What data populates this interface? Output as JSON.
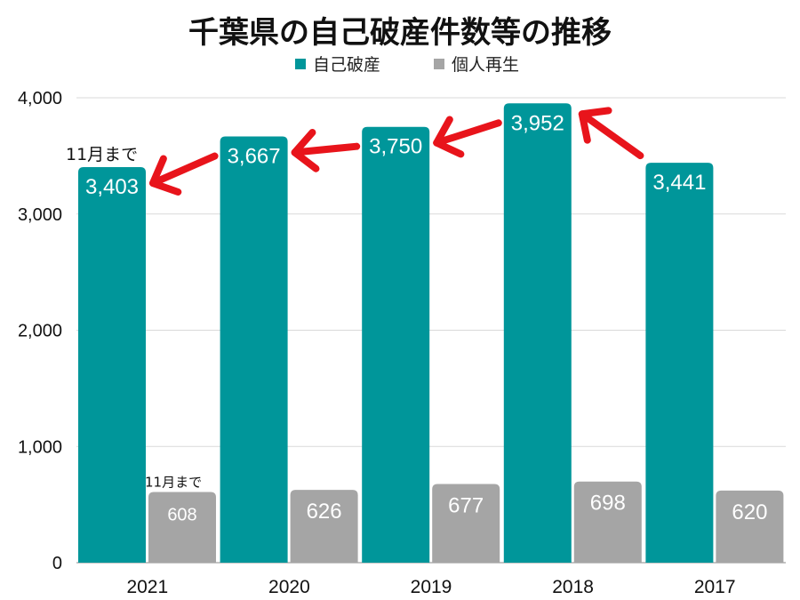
{
  "chart_data": {
    "type": "bar",
    "title": "千葉県の自己破産件数等の推移",
    "categories": [
      "2021",
      "2020",
      "2019",
      "2018",
      "2017"
    ],
    "series": [
      {
        "name": "自己破産",
        "color": "#00969a",
        "values": [
          3403,
          3667,
          3750,
          3952,
          3441
        ]
      },
      {
        "name": "個人再生",
        "color": "#a5a5a5",
        "values": [
          608,
          626,
          677,
          698,
          620
        ]
      }
    ],
    "data_labels": {
      "自己破産": [
        "3,403",
        "3,667",
        "3,750",
        "3,952",
        "3,441"
      ],
      "個人再生": [
        "608",
        "626",
        "677",
        "698",
        "620"
      ]
    },
    "yticks": [
      "0",
      "1,000",
      "2,000",
      "3,000",
      "4,000"
    ],
    "ylim": [
      0,
      4000
    ],
    "grid": true,
    "legend": "top-center",
    "annotations": [
      {
        "text": "11月まで",
        "category": "2021",
        "series": "自己破産"
      },
      {
        "text": "11月まで",
        "category": "2021",
        "series": "個人再生"
      }
    ],
    "arrow_color": "#e8141b"
  }
}
